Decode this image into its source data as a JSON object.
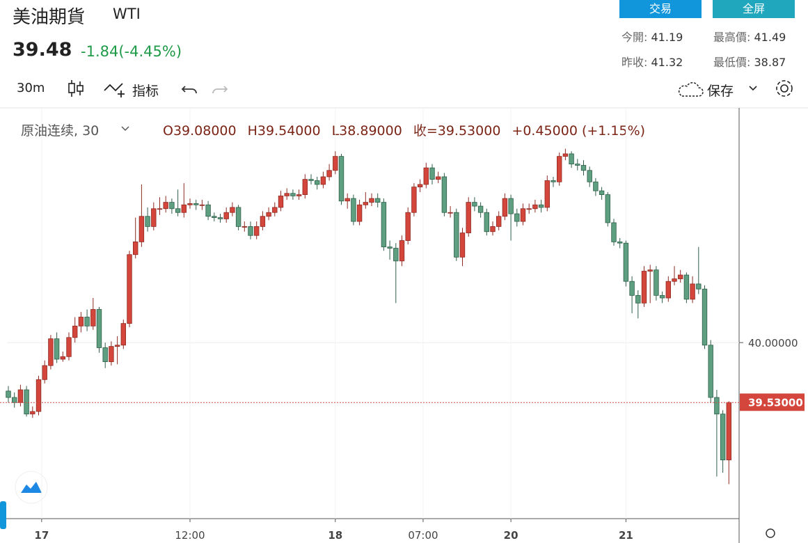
{
  "header": {
    "title": "美油期貨",
    "symbol": "WTI",
    "price": "39.48",
    "change": "-1.84(-4.45%)",
    "buttons": [
      "交易",
      "全屏"
    ],
    "stats": [
      {
        "label": "今開:",
        "value": "41.19"
      },
      {
        "label": "最高價:",
        "value": "41.49"
      },
      {
        "label": "昨收:",
        "value": "41.32"
      },
      {
        "label": "最低價:",
        "value": "38.87"
      }
    ]
  },
  "toolbar": {
    "interval": "30m",
    "indicators": "指标",
    "save": "保存"
  },
  "chart_data": {
    "type": "candlestick",
    "legend_name": "原油连续, 30",
    "legend": [
      "O39.08000",
      "H39.54000",
      "L38.89000",
      "收=39.53000",
      "+0.45000 (+1.15%)"
    ],
    "up_color": "#d4463b",
    "down_color": "#5d9f80",
    "categories": [
      null,
      null,
      null,
      null,
      null,
      null,
      null,
      null,
      null,
      null,
      null,
      null,
      null,
      null,
      null,
      null,
      null,
      null,
      null,
      null,
      null,
      null,
      null,
      null,
      null,
      null,
      null,
      null,
      null,
      null,
      null,
      null,
      null,
      null,
      null,
      null,
      null,
      null,
      null,
      null,
      null,
      null,
      null,
      null,
      null,
      null,
      null,
      null,
      null,
      null,
      null,
      null,
      null,
      null,
      null,
      null,
      null,
      null,
      null,
      null,
      null,
      null,
      null,
      null,
      null,
      null,
      null,
      null,
      null,
      null,
      null,
      null,
      null,
      null,
      null,
      null,
      null,
      null,
      null,
      null,
      null,
      null,
      null,
      null,
      null,
      null,
      null,
      null,
      null,
      null,
      null,
      null,
      null,
      null,
      null,
      null,
      null,
      null,
      null,
      null,
      null,
      null,
      null,
      null,
      null,
      null,
      null,
      null,
      null,
      null,
      null,
      null,
      null,
      null,
      null,
      null,
      null,
      null,
      null,
      null
    ],
    "open": [
      39.62,
      39.57,
      39.53,
      39.63,
      39.44,
      39.46,
      39.71,
      39.82,
      40.03,
      39.87,
      39.89,
      40.04,
      40.13,
      40.2,
      40.13,
      40.26,
      39.96,
      39.85,
      39.97,
      39.98,
      40.15,
      40.69,
      40.79,
      40.99,
      40.91,
      41.05,
      41.05,
      41.1,
      41.05,
      41.02,
      41.08,
      41.09,
      41.08,
      41.08,
      40.99,
      40.98,
      40.97,
      41.02,
      41.06,
      40.91,
      40.91,
      40.84,
      40.91,
      40.99,
      41.02,
      41.06,
      41.15,
      41.17,
      41.15,
      41.16,
      41.28,
      41.27,
      41.24,
      41.3,
      41.35,
      41.46,
      41.11,
      41.13,
      40.95,
      41.08,
      41.1,
      41.13,
      41.1,
      40.75,
      40.74,
      40.64,
      40.8,
      41.02,
      41.22,
      41.24,
      41.37,
      41.28,
      41.3,
      41.02,
      41.02,
      40.67,
      40.86,
      41.1,
      41.07,
      41.02,
      40.87,
      40.91,
      40.99,
      41.13,
      41.01,
      40.95,
      41.05,
      41.05,
      41.08,
      41.06,
      41.27,
      41.26,
      41.46,
      41.48,
      41.4,
      41.39,
      41.35,
      41.26,
      41.19,
      41.16,
      40.94,
      40.79,
      40.78,
      40.48,
      40.37,
      40.31,
      40.56,
      40.57,
      40.37,
      40.35,
      40.48,
      40.5,
      40.53,
      40.34,
      40.46,
      40.42,
      39.98,
      39.57,
      39.44,
      39.08
    ],
    "high": [
      39.66,
      39.61,
      39.67,
      39.66,
      39.5,
      39.74,
      39.86,
      40.06,
      40.08,
      39.93,
      40.08,
      40.2,
      40.24,
      40.26,
      40.35,
      40.28,
      40.0,
      40.01,
      40.05,
      40.18,
      40.72,
      40.98,
      41.24,
      41.06,
      41.1,
      41.14,
      41.15,
      41.13,
      41.2,
      41.25,
      41.13,
      41.12,
      41.12,
      41.11,
      41.02,
      41.01,
      41.06,
      41.1,
      41.08,
      40.95,
      40.95,
      40.95,
      41.03,
      41.06,
      41.1,
      41.19,
      41.21,
      41.2,
      41.2,
      41.32,
      41.32,
      41.3,
      41.34,
      41.4,
      41.5,
      41.48,
      41.17,
      41.16,
      41.12,
      41.18,
      41.17,
      41.17,
      41.13,
      40.8,
      40.78,
      40.84,
      41.06,
      41.25,
      41.28,
      41.41,
      41.4,
      41.34,
      41.33,
      41.07,
      41.05,
      40.9,
      41.14,
      41.14,
      41.1,
      41.05,
      40.95,
      41.03,
      41.17,
      41.16,
      41.05,
      41.09,
      41.09,
      41.12,
      41.12,
      41.31,
      41.3,
      41.49,
      41.52,
      41.5,
      41.44,
      41.43,
      41.38,
      41.29,
      41.22,
      41.18,
      40.97,
      40.82,
      40.8,
      40.52,
      40.41,
      40.6,
      40.61,
      40.6,
      40.4,
      40.52,
      40.6,
      40.57,
      40.55,
      40.52,
      40.75,
      40.45,
      40.02,
      39.63,
      39.47,
      39.54
    ],
    "low": [
      39.53,
      39.49,
      39.5,
      39.42,
      39.41,
      39.43,
      39.68,
      39.79,
      39.84,
      39.85,
      39.86,
      40.0,
      40.08,
      40.09,
      40.1,
      39.92,
      39.8,
      39.82,
      39.83,
      39.95,
      40.12,
      40.66,
      40.75,
      40.87,
      40.88,
      41.0,
      41.02,
      41.01,
      40.99,
      40.98,
      41.05,
      41.04,
      41.04,
      40.96,
      40.95,
      40.94,
      40.94,
      40.99,
      40.88,
      40.87,
      40.81,
      40.81,
      40.88,
      40.96,
      40.99,
      41.03,
      41.12,
      41.12,
      41.12,
      41.13,
      41.24,
      41.2,
      41.21,
      41.27,
      41.32,
      41.08,
      41.05,
      40.92,
      40.92,
      41.05,
      41.07,
      41.06,
      40.72,
      40.65,
      40.31,
      40.6,
      40.77,
      40.99,
      41.18,
      41.21,
      41.24,
      41.25,
      40.99,
      40.98,
      40.64,
      40.6,
      40.83,
      41.03,
      40.98,
      40.84,
      40.84,
      40.88,
      40.96,
      40.8,
      40.91,
      40.92,
      41.01,
      41.02,
      41.02,
      41.03,
      41.22,
      41.23,
      41.43,
      41.37,
      41.35,
      41.31,
      41.22,
      41.15,
      41.12,
      40.91,
      40.76,
      40.74,
      40.44,
      40.23,
      40.19,
      40.28,
      40.31,
      40.33,
      40.31,
      40.32,
      40.45,
      40.47,
      40.31,
      40.31,
      40.38,
      39.95,
      39.53,
      38.95,
      38.98,
      38.89
    ],
    "close": [
      39.57,
      39.53,
      39.63,
      39.44,
      39.46,
      39.71,
      39.82,
      40.03,
      39.87,
      39.89,
      40.04,
      40.13,
      40.2,
      40.13,
      40.26,
      39.96,
      39.85,
      39.97,
      39.98,
      40.15,
      40.69,
      40.79,
      40.99,
      40.91,
      41.05,
      41.05,
      41.1,
      41.05,
      41.02,
      41.08,
      41.09,
      41.08,
      41.08,
      40.99,
      40.98,
      40.97,
      41.02,
      41.06,
      40.91,
      40.91,
      40.84,
      40.91,
      40.99,
      41.02,
      41.06,
      41.15,
      41.17,
      41.15,
      41.16,
      41.28,
      41.27,
      41.24,
      41.3,
      41.35,
      41.46,
      41.11,
      41.13,
      40.95,
      41.08,
      41.1,
      41.13,
      41.1,
      40.75,
      40.74,
      40.64,
      40.8,
      41.02,
      41.22,
      41.24,
      41.37,
      41.28,
      41.3,
      41.02,
      41.02,
      40.67,
      40.86,
      41.1,
      41.07,
      41.02,
      40.87,
      40.91,
      40.99,
      41.13,
      41.01,
      40.95,
      41.05,
      41.05,
      41.08,
      41.06,
      41.27,
      41.26,
      41.46,
      41.48,
      41.4,
      41.39,
      41.35,
      41.26,
      41.19,
      41.16,
      40.94,
      40.79,
      40.78,
      40.48,
      40.37,
      40.31,
      40.56,
      40.57,
      40.37,
      40.35,
      40.48,
      40.5,
      40.53,
      40.34,
      40.46,
      40.42,
      39.98,
      39.57,
      39.44,
      39.08,
      39.53
    ],
    "ylim": [
      38.62,
      41.84
    ],
    "yticks": [
      {
        "value": 40,
        "label": "40.00000"
      }
    ],
    "xticks": [
      {
        "value": 5.5,
        "label": "17"
      },
      {
        "value": 30,
        "label": "12:00"
      },
      {
        "value": 54,
        "label": "18"
      },
      {
        "value": 68.5,
        "label": "07:00"
      },
      {
        "value": 83,
        "label": "20"
      },
      {
        "value": 102,
        "label": "21"
      }
    ],
    "last_price": {
      "value": 39.53,
      "label": "39.53000"
    },
    "grid": true
  }
}
